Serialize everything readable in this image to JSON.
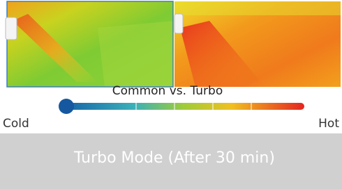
{
  "title": "Common vs. Turbo",
  "scale": {
    "min_label": "Cold",
    "max_label": "Hot"
  },
  "caption": "Turbo Mode (After 30 min)"
}
